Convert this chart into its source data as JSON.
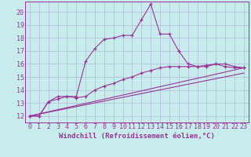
{
  "background_color": "#c8ecec",
  "grid_color": "#b0b8d8",
  "line_color": "#993399",
  "xlabel": "Windchill (Refroidissement éolien,°C)",
  "xlabel_fontsize": 6.5,
  "tick_fontsize": 6,
  "xlim": [
    -0.5,
    23.5
  ],
  "ylim": [
    11.5,
    20.8
  ],
  "yticks": [
    12,
    13,
    14,
    15,
    16,
    17,
    18,
    19,
    20
  ],
  "xticks": [
    0,
    1,
    2,
    3,
    4,
    5,
    6,
    7,
    8,
    9,
    10,
    11,
    12,
    13,
    14,
    15,
    16,
    17,
    18,
    19,
    20,
    21,
    22,
    23
  ],
  "series1_x": [
    0,
    1,
    2,
    3,
    4,
    5,
    6,
    7,
    8,
    9,
    10,
    11,
    12,
    13,
    14,
    15,
    16,
    17,
    18,
    19,
    20,
    21,
    22,
    23
  ],
  "series1_y": [
    12.0,
    12.0,
    13.1,
    13.5,
    13.5,
    13.5,
    16.2,
    17.2,
    17.9,
    18.0,
    18.2,
    18.2,
    19.4,
    20.6,
    18.3,
    18.3,
    17.0,
    16.0,
    15.8,
    15.8,
    16.0,
    15.8,
    15.7,
    15.7
  ],
  "series2_x": [
    0,
    1,
    2,
    3,
    4,
    5,
    6,
    7,
    8,
    9,
    10,
    11,
    12,
    13,
    14,
    15,
    16,
    17,
    18,
    19,
    20,
    21,
    22,
    23
  ],
  "series2_y": [
    12.0,
    12.0,
    13.1,
    13.3,
    13.5,
    13.4,
    13.5,
    14.0,
    14.3,
    14.5,
    14.8,
    15.0,
    15.3,
    15.5,
    15.7,
    15.8,
    15.8,
    15.8,
    15.8,
    15.9,
    16.0,
    16.0,
    15.8,
    15.7
  ],
  "series3_x": [
    0,
    23
  ],
  "series3_y": [
    12.0,
    15.7
  ],
  "series4_x": [
    0,
    23
  ],
  "series4_y": [
    12.0,
    15.3
  ]
}
